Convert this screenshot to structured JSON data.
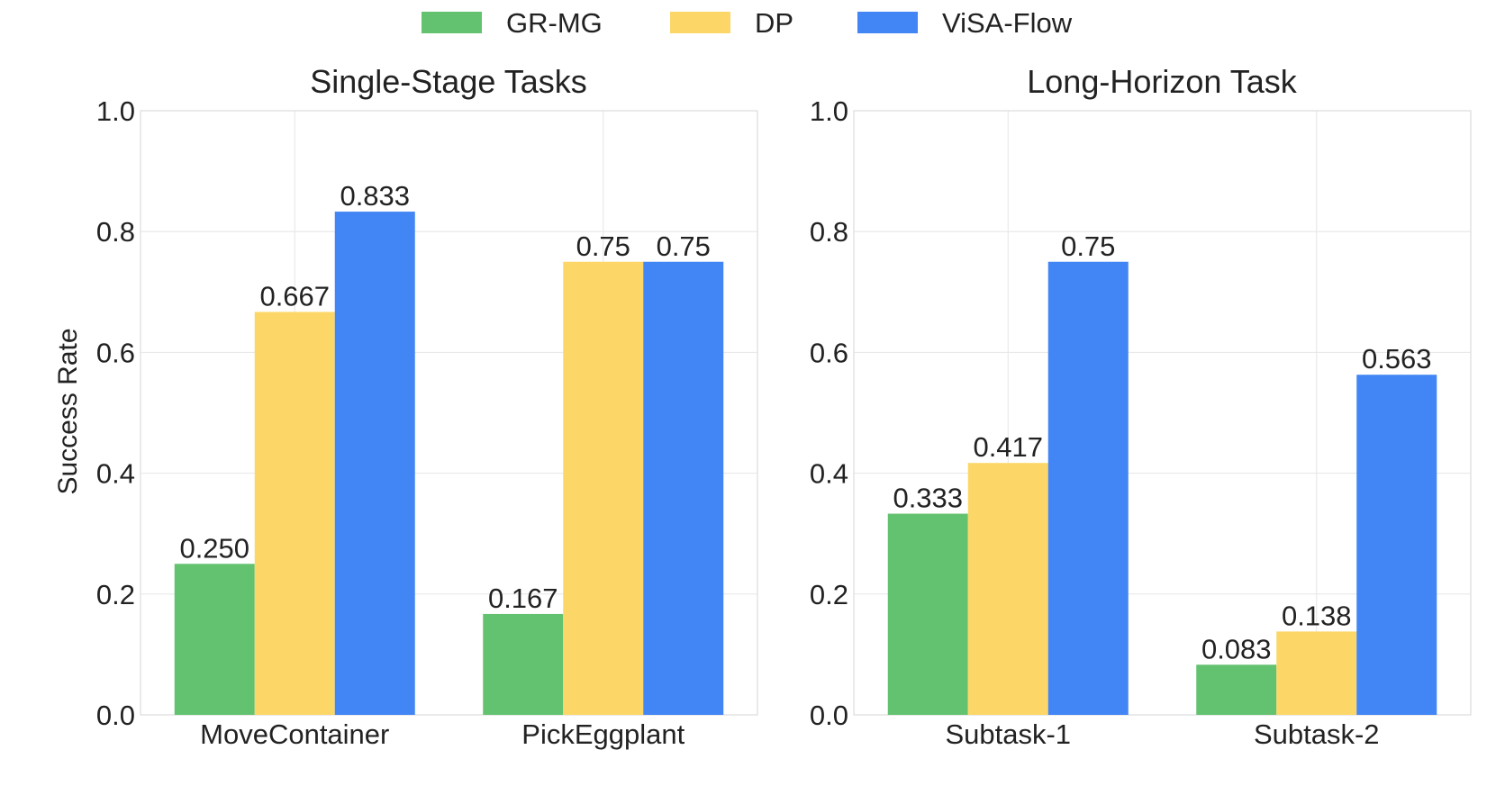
{
  "legend": [
    {
      "name": "GR-MG",
      "color": "#63c26f"
    },
    {
      "name": "DP",
      "color": "#fcd767"
    },
    {
      "name": "ViSA-Flow",
      "color": "#4285f4"
    }
  ],
  "ylabel": "Success Rate",
  "chart_data": [
    {
      "type": "bar",
      "title": "Single-Stage Tasks",
      "categories": [
        "MoveContainer",
        "PickEggplant"
      ],
      "series": [
        {
          "name": "GR-MG",
          "values": [
            0.25,
            0.167
          ],
          "labels": [
            "0.250",
            "0.167"
          ]
        },
        {
          "name": "DP",
          "values": [
            0.667,
            0.75
          ],
          "labels": [
            "0.667",
            "0.75"
          ]
        },
        {
          "name": "ViSA-Flow",
          "values": [
            0.833,
            0.75
          ],
          "labels": [
            "0.833",
            "0.75"
          ]
        }
      ],
      "xlabel": "",
      "ylabel": "Success Rate",
      "ylim": [
        0,
        1
      ],
      "yticks": [
        "0.0",
        "0.2",
        "0.4",
        "0.6",
        "0.8",
        "1.0"
      ],
      "grid": true
    },
    {
      "type": "bar",
      "title": "Long-Horizon Task",
      "categories": [
        "Subtask-1",
        "Subtask-2"
      ],
      "series": [
        {
          "name": "GR-MG",
          "values": [
            0.333,
            0.083
          ],
          "labels": [
            "0.333",
            "0.083"
          ]
        },
        {
          "name": "DP",
          "values": [
            0.417,
            0.138
          ],
          "labels": [
            "0.417",
            "0.138"
          ]
        },
        {
          "name": "ViSA-Flow",
          "values": [
            0.75,
            0.563
          ],
          "labels": [
            "0.75",
            "0.563"
          ]
        }
      ],
      "xlabel": "",
      "ylabel": "",
      "ylim": [
        0,
        1
      ],
      "yticks": [
        "0.0",
        "0.2",
        "0.4",
        "0.6",
        "0.8",
        "1.0"
      ],
      "grid": true
    }
  ]
}
